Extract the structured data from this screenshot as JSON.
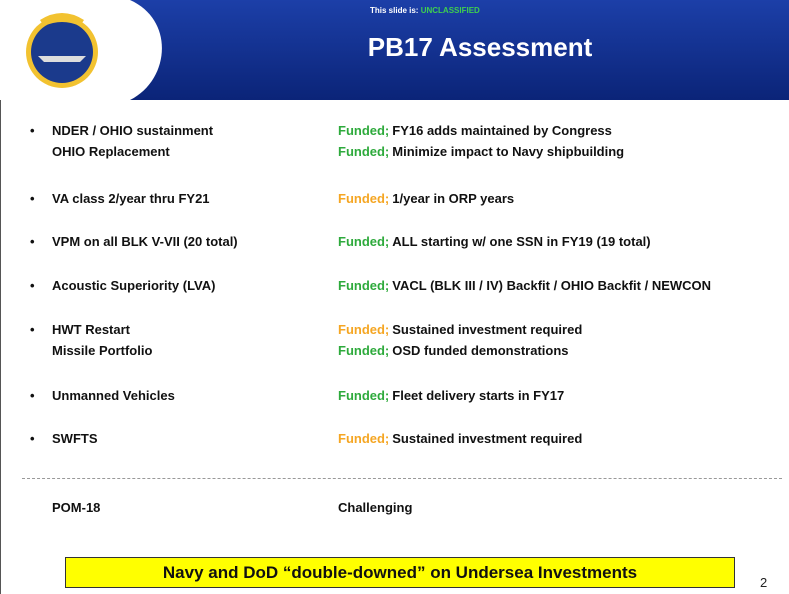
{
  "header": {
    "classification_prefix": "This slide is:",
    "classification": "UNCLASSIFIED",
    "title": "PB17 Assessment"
  },
  "items": [
    {
      "lines": [
        {
          "label": "NDER / OHIO sustainment",
          "status": "Funded;",
          "status_color": "#2eaa3c",
          "detail": "FY16 adds maintained by Congress"
        },
        {
          "label": "OHIO Replacement",
          "status": "Funded;",
          "status_color": "#2eaa3c",
          "detail": "Minimize impact to Navy shipbuilding"
        }
      ]
    },
    {
      "lines": [
        {
          "label": "VA class 2/year thru FY21",
          "status": "Funded;",
          "status_color": "#f5a623",
          "detail": "1/year in ORP years"
        }
      ]
    },
    {
      "lines": [
        {
          "label": "VPM on all BLK V-VII (20 total)",
          "status": "Funded;",
          "status_color": "#2eaa3c",
          "detail": "ALL starting w/ one SSN in FY19 (19 total)"
        }
      ]
    },
    {
      "lines": [
        {
          "label": "Acoustic Superiority (LVA)",
          "status": "Funded;",
          "status_color": "#2eaa3c",
          "detail": "VACL (BLK III / IV) Backfit / OHIO Backfit / NEWCON"
        }
      ]
    },
    {
      "lines": [
        {
          "label": "HWT Restart",
          "status": "Funded;",
          "status_color": "#f5a623",
          "detail": "Sustained investment required"
        },
        {
          "label": "Missile Portfolio",
          "status": "Funded;",
          "status_color": "#2eaa3c",
          "detail": "OSD funded demonstrations"
        }
      ]
    },
    {
      "lines": [
        {
          "label": "Unmanned Vehicles",
          "status": "Funded;",
          "status_color": "#2eaa3c",
          "detail": "Fleet delivery starts in FY17"
        }
      ]
    },
    {
      "lines": [
        {
          "label": "SWFTS",
          "status": "Funded;",
          "status_color": "#f5a623",
          "detail": "Sustained investment required"
        }
      ]
    }
  ],
  "footer_row": {
    "label": "POM-18",
    "detail": "Challenging"
  },
  "banner": "Navy and DoD “double-downed” on Undersea Investments",
  "page_number": "2"
}
